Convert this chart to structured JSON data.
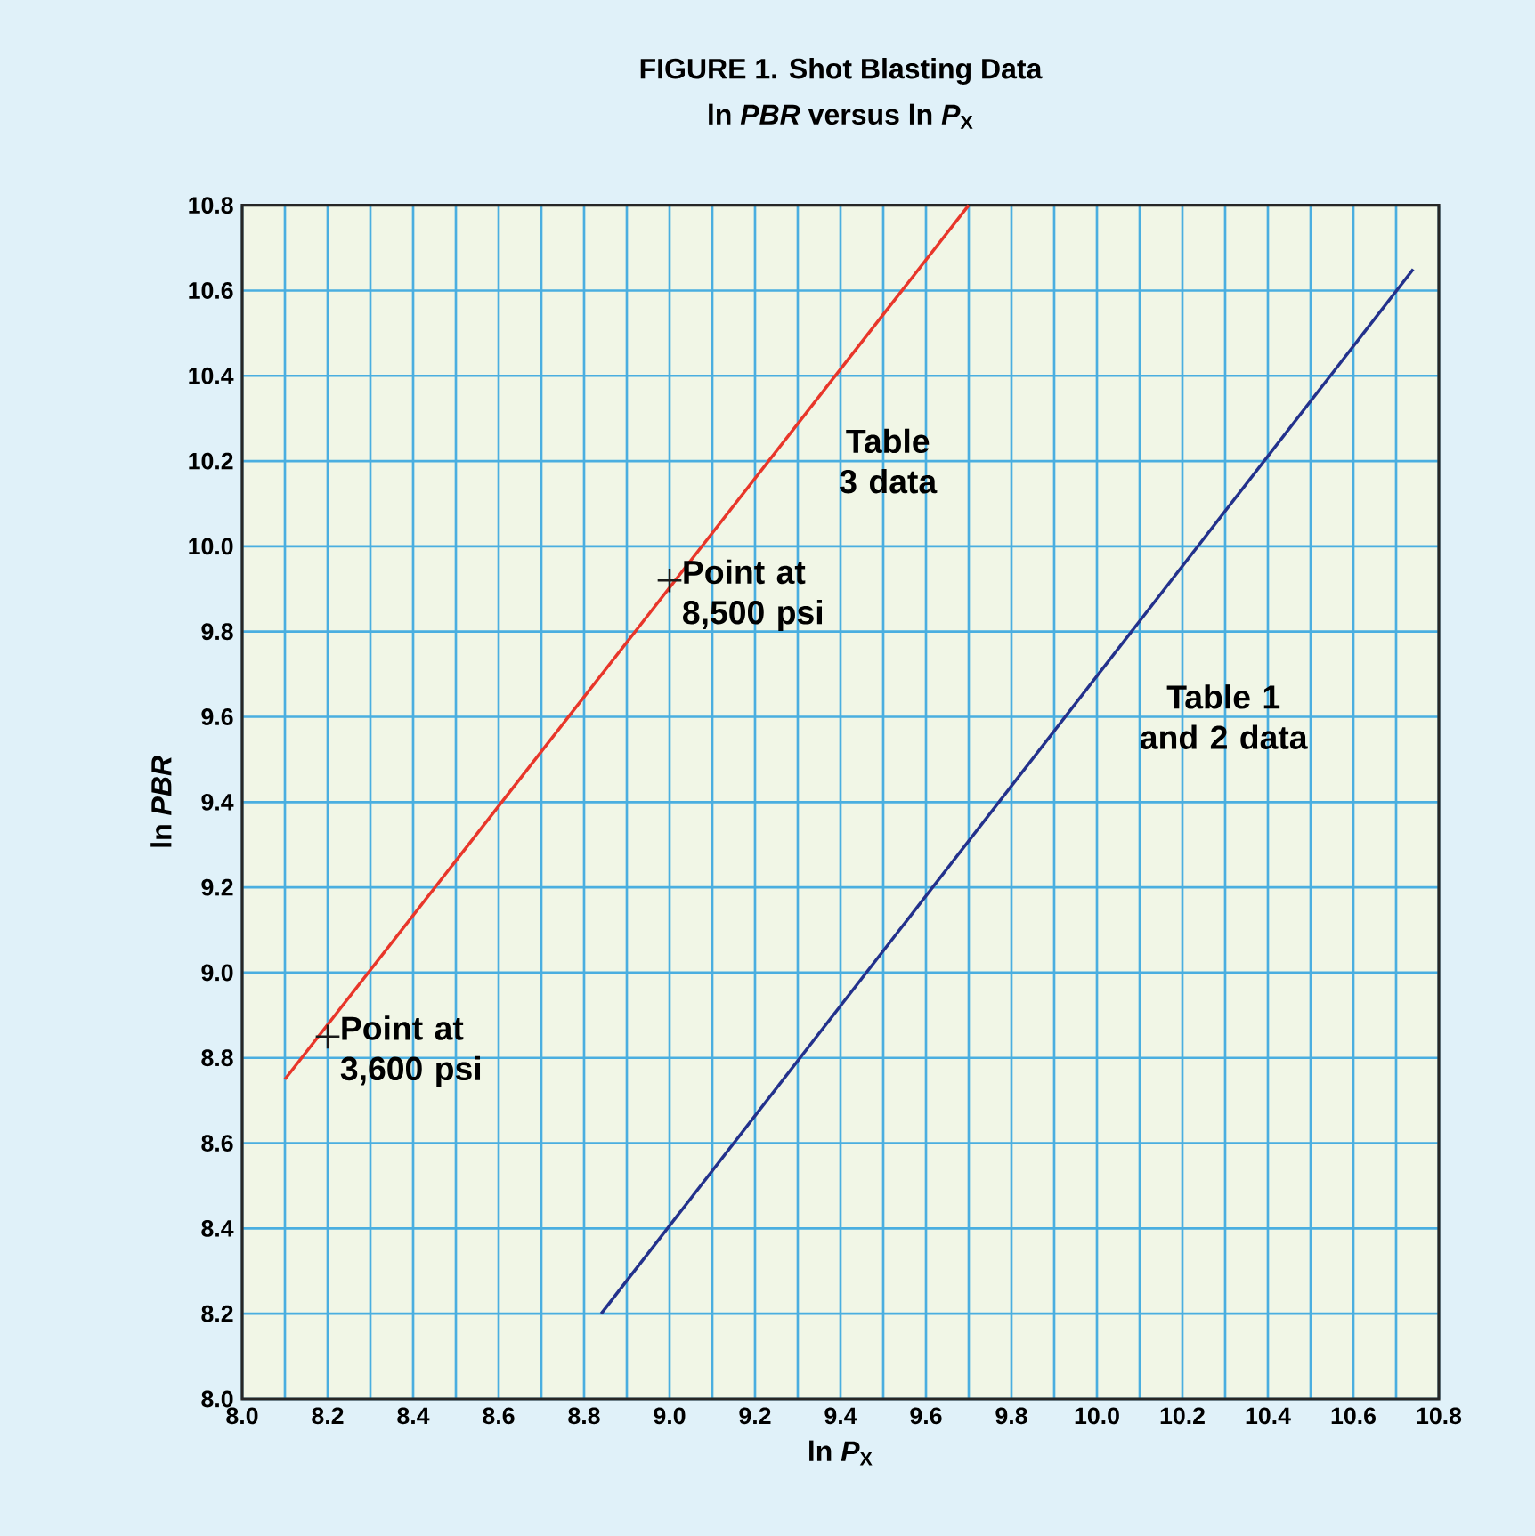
{
  "chart_data": {
    "type": "line",
    "title": "**FIGURE 1.** Shot Blasting Data",
    "subtitle": "ln *PBR* versus ln *P*$_{X}$",
    "xlabel": "ln *P*$_{X}$",
    "ylabel": "ln *PBR*",
    "series": [
      {
        "color": "#e8362a",
        "x": [
          8.1,
          9.7
        ],
        "values": [
          8.75,
          10.8
        ]
      },
      {
        "color": "#23318c",
        "x": [
          8.84,
          10.74
        ],
        "values": [
          8.2,
          10.65
        ]
      },
      {
        "type": "scatter",
        "color": "#1a1a1a",
        "marker": "cross",
        "x": [
          8.2,
          9.0
        ],
        "values": [
          8.85,
          9.92
        ]
      }
    ],
    "xlim": [
      8.0,
      10.8
    ],
    "ylim": [
      8.0,
      10.8
    ],
    "xticks": [
      {
        "value": 8.0,
        "label": "8.0"
      },
      {
        "value": 8.1,
        "label": null
      },
      {
        "value": 8.2,
        "label": "8.2"
      },
      {
        "value": 8.3,
        "label": null
      },
      {
        "value": 8.4,
        "label": "8.4"
      },
      {
        "value": 8.5,
        "label": null
      },
      {
        "value": 8.6,
        "label": "8.6"
      },
      {
        "value": 8.7,
        "label": null
      },
      {
        "value": 8.8,
        "label": "8.8"
      },
      {
        "value": 8.9,
        "label": null
      },
      {
        "value": 9.0,
        "label": "9.0"
      },
      {
        "value": 9.1,
        "label": null
      },
      {
        "value": 9.2,
        "label": "9.2"
      },
      {
        "value": 9.3,
        "label": null
      },
      {
        "value": 9.4,
        "label": "9.4"
      },
      {
        "value": 9.5,
        "label": null
      },
      {
        "value": 9.6,
        "label": "9.6"
      },
      {
        "value": 9.7,
        "label": null
      },
      {
        "value": 9.8,
        "label": "9.8"
      },
      {
        "value": 9.9,
        "label": null
      },
      {
        "value": 10.0,
        "label": "10.0"
      },
      {
        "value": 10.1,
        "label": null
      },
      {
        "value": 10.2,
        "label": "10.2"
      },
      {
        "value": 10.3,
        "label": null
      },
      {
        "value": 10.4,
        "label": "10.4"
      },
      {
        "value": 10.5,
        "label": null
      },
      {
        "value": 10.6,
        "label": "10.6"
      },
      {
        "value": 10.7,
        "label": null
      },
      {
        "value": 10.8,
        "label": "10.8"
      }
    ],
    "yticks": [
      {
        "value": 8.0,
        "label": "8.0"
      },
      {
        "value": 8.2,
        "label": "8.2"
      },
      {
        "value": 8.4,
        "label": "8.4"
      },
      {
        "value": 8.6,
        "label": "8.6"
      },
      {
        "value": 8.8,
        "label": "8.8"
      },
      {
        "value": 9.0,
        "label": "9.0"
      },
      {
        "value": 9.2,
        "label": "9.2"
      },
      {
        "value": 9.4,
        "label": "9.4"
      },
      {
        "value": 9.6,
        "label": "9.6"
      },
      {
        "value": 9.8,
        "label": "9.8"
      },
      {
        "value": 10.0,
        "label": "10.0"
      },
      {
        "value": 10.2,
        "label": "10.2"
      },
      {
        "value": 10.4,
        "label": "10.4"
      },
      {
        "value": 10.6,
        "label": "10.6"
      },
      {
        "value": 10.8,
        "label": "10.8"
      }
    ],
    "grid": true,
    "annotations": [
      {
        "text": "Point at 3,600 psi",
        "x": 8.2,
        "y": 8.85
      },
      {
        "text": "Point at 8,500 psi",
        "x": 9.0,
        "y": 9.92
      },
      {
        "text": "Table 3 data",
        "x": 9.23,
        "y": 10.2
      },
      {
        "text": "Table 1 and 2 data",
        "x": 9.93,
        "y": 9.6
      }
    ]
  }
}
